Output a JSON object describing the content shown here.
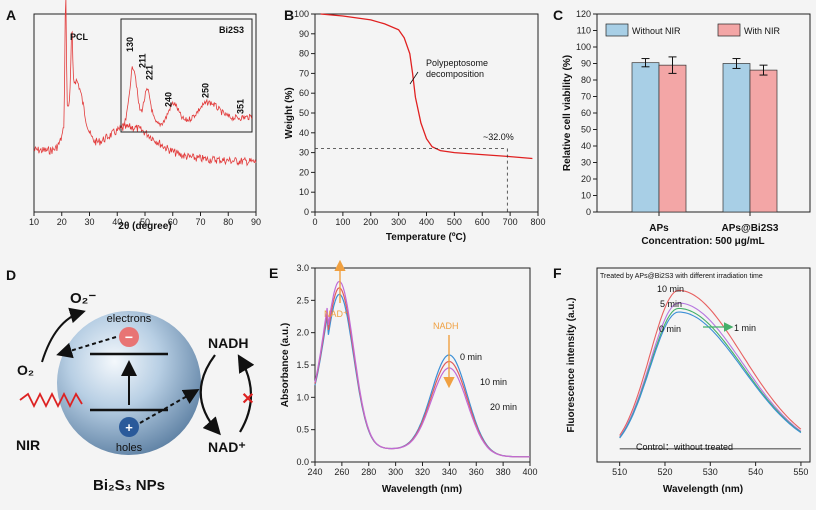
{
  "chart_data": [
    {
      "panel": "A",
      "type": "line",
      "xlabel": "2θ (degree)",
      "xlim": [
        10,
        90
      ],
      "xticks": [
        "10",
        "20",
        "30",
        "40",
        "50",
        "60",
        "70",
        "80",
        "90"
      ],
      "series": [
        {
          "name": "PCL",
          "color": "#e23b3b"
        }
      ],
      "inset": {
        "title": "Bi2S3",
        "peaks": [
          {
            "x": 22,
            "label": "130"
          },
          {
            "x": 29,
            "label": "211"
          },
          {
            "x": 33,
            "label": "221"
          },
          {
            "x": 44,
            "label": "240"
          },
          {
            "x": 65,
            "label": "250"
          },
          {
            "x": 85,
            "label": "351"
          }
        ]
      }
    },
    {
      "panel": "B",
      "type": "line",
      "xlabel": "Temperature (ºC)",
      "ylabel": "Weight (%)",
      "xlim": [
        0,
        800
      ],
      "ylim": [
        0,
        100
      ],
      "xticks": [
        "0",
        "100",
        "200",
        "300",
        "400",
        "500",
        "600",
        "700",
        "800"
      ],
      "yticks": [
        "0",
        "10",
        "20",
        "30",
        "40",
        "50",
        "60",
        "70",
        "80",
        "90",
        "100"
      ],
      "series": [
        {
          "name": "TGA",
          "color": "#e02020",
          "x": [
            20,
            100,
            200,
            250,
            300,
            320,
            340,
            350,
            360,
            380,
            400,
            420,
            450,
            500,
            600,
            700,
            780
          ],
          "y": [
            100,
            99,
            97,
            95,
            92,
            88,
            80,
            70,
            58,
            45,
            37,
            33,
            31,
            30,
            29,
            28,
            27
          ]
        }
      ],
      "annotations": {
        "line1": "Polypeptosome",
        "line2": "decomposition",
        "residual": "~32.0%"
      },
      "residual": {
        "x": 690,
        "y": 32
      }
    },
    {
      "panel": "C",
      "type": "bar",
      "categories": [
        "APs",
        "APs@Bi2S3"
      ],
      "xlabel": "Concentration: 500 μg/mL",
      "ylabel": "Relative cell viability (%)",
      "ylim": [
        0,
        120
      ],
      "yticks": [
        "0",
        "10",
        "20",
        "30",
        "40",
        "50",
        "60",
        "70",
        "80",
        "90",
        "100",
        "110",
        "120"
      ],
      "series": [
        {
          "name": "Without NIR",
          "color": "#a8cfe6",
          "values": [
            90.5,
            90
          ],
          "err": [
            2.5,
            3
          ]
        },
        {
          "name": "With NIR",
          "color": "#f3a6a6",
          "values": [
            89,
            86
          ],
          "err": [
            5,
            3
          ]
        }
      ]
    },
    {
      "panel": "E",
      "type": "line",
      "xlabel": "Wavelength (nm)",
      "ylabel": "Absorbance (a.u.)",
      "xlim": [
        240,
        400
      ],
      "ylim": [
        0,
        3.0
      ],
      "xticks": [
        "240",
        "260",
        "280",
        "300",
        "320",
        "340",
        "360",
        "380",
        "400"
      ],
      "yticks": [
        "0.0",
        "0.5",
        "1.0",
        "1.5",
        "2.0",
        "2.5",
        "3.0"
      ],
      "series": [
        {
          "name": "0 min",
          "color": "#3b8fd6",
          "peak1": 2.65,
          "peak2": 1.65
        },
        {
          "name": "10 min",
          "color": "#e05c5c",
          "peak1": 2.75,
          "peak2": 1.55
        },
        {
          "name": "20 min",
          "color": "#c06bd6",
          "peak1": 2.85,
          "peak2": 1.45
        }
      ],
      "annotations": {
        "nadplus": "NAD⁺",
        "nadh": "NADH"
      }
    },
    {
      "panel": "F",
      "type": "line",
      "title": "Treated by APs@Bi2S3 with different irradiation time",
      "xlabel": "Wavelength (nm)",
      "ylabel": "Fluorescence intensity (a.u.)",
      "xlim": [
        505,
        552
      ],
      "xticks": [
        "510",
        "520",
        "530",
        "540",
        "550"
      ],
      "series": [
        {
          "name": "10 min",
          "color": "#e86060",
          "peak": 0.92
        },
        {
          "name": "5 min",
          "color": "#b777e0",
          "peak": 0.85
        },
        {
          "name": "1 min",
          "color": "#45b06a",
          "peak": 0.82
        },
        {
          "name": "0 min",
          "color": "#3b8fd6",
          "peak": 0.8
        },
        {
          "name": "Control：without treated",
          "color": "#555555",
          "peak": 0.04
        }
      ]
    }
  ],
  "panel_labels": [
    "A",
    "B",
    "C",
    "D",
    "E",
    "F"
  ],
  "diagram": {
    "o2minus": "O₂⁻",
    "o2": "O₂",
    "electrons": "electrons",
    "holes": "holes",
    "nir": "NIR",
    "nadh": "NADH",
    "nadplus": "NAD⁺",
    "title": "Bi₂S₃ NPs",
    "minus": "−",
    "plus": "+"
  }
}
